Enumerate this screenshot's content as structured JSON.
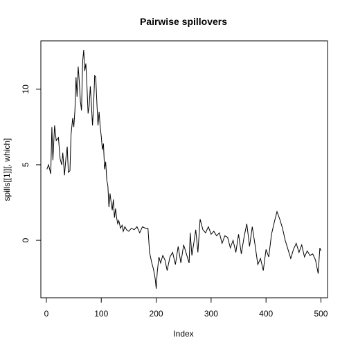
{
  "chart_data": {
    "type": "line",
    "title": "Pairwise spillovers",
    "xlabel": "Index",
    "ylabel": "spills[[1]][, which]",
    "xlim": [
      -10,
      512
    ],
    "ylim": [
      -3.8,
      13.2
    ],
    "x_ticks": [
      0,
      100,
      200,
      300,
      400,
      500
    ],
    "y_ticks": [
      0,
      5,
      10
    ],
    "grid": false,
    "legend": "none",
    "line_color": "#000000",
    "series": [
      {
        "x": [
          1,
          4,
          8,
          10,
          12,
          15,
          18,
          22,
          25,
          28,
          30,
          33,
          36,
          38,
          40,
          43,
          45,
          48,
          50,
          52,
          54,
          56,
          58,
          60,
          62,
          64,
          66,
          68,
          70,
          72,
          74,
          76,
          78,
          80,
          82,
          84,
          86,
          88,
          90,
          92,
          94,
          96,
          98,
          100,
          102,
          104,
          106,
          108,
          110,
          112,
          114,
          116,
          118,
          120,
          122,
          124,
          126,
          128,
          130,
          132,
          135,
          138,
          140,
          143,
          146,
          150,
          155,
          160,
          165,
          170,
          175,
          180,
          185,
          188,
          192,
          195,
          198,
          200,
          202,
          205,
          208,
          212,
          216,
          220,
          225,
          230,
          235,
          240,
          245,
          250,
          255,
          260,
          262,
          265,
          268,
          272,
          276,
          280,
          285,
          290,
          295,
          300,
          305,
          310,
          315,
          320,
          325,
          330,
          335,
          340,
          345,
          350,
          355,
          360,
          365,
          370,
          375,
          380,
          385,
          390,
          395,
          400,
          405,
          410,
          415,
          420,
          425,
          430,
          435,
          440,
          445,
          450,
          455,
          460,
          465,
          470,
          475,
          480,
          485,
          490,
          495,
          498,
          500
        ],
        "y": [
          4.7,
          5.0,
          4.4,
          7.5,
          5.3,
          7.6,
          6.6,
          6.8,
          5.4,
          5.0,
          5.8,
          4.3,
          5.6,
          6.2,
          4.5,
          4.6,
          7.0,
          8.1,
          7.5,
          8.6,
          10.8,
          9.5,
          11.5,
          10.5,
          9.2,
          8.6,
          11.8,
          12.6,
          11.2,
          11.7,
          10.2,
          8.4,
          8.9,
          10.2,
          9.0,
          7.6,
          8.8,
          10.9,
          10.8,
          9.1,
          7.6,
          8.5,
          7.5,
          6.9,
          6.0,
          6.4,
          4.7,
          5.2,
          4.0,
          3.6,
          2.2,
          3.1,
          2.5,
          2.0,
          2.7,
          1.5,
          2.1,
          1.5,
          1.1,
          1.3,
          0.8,
          1.0,
          0.6,
          0.9,
          0.7,
          0.6,
          0.8,
          0.7,
          0.9,
          0.5,
          0.9,
          0.8,
          0.8,
          -0.8,
          -1.5,
          -1.9,
          -2.5,
          -3.2,
          -2.1,
          -1.1,
          -1.5,
          -1.0,
          -1.3,
          -2.0,
          -1.1,
          -0.8,
          -1.6,
          -0.4,
          -1.5,
          -0.3,
          -0.9,
          -1.5,
          0.5,
          -1.0,
          -0.3,
          0.7,
          -0.8,
          1.4,
          0.7,
          0.5,
          0.9,
          0.4,
          0.6,
          0.3,
          0.5,
          -0.2,
          0.3,
          0.2,
          -0.5,
          0.0,
          -0.8,
          0.4,
          -0.9,
          0.2,
          1.1,
          -0.4,
          0.9,
          -0.3,
          -1.6,
          -1.2,
          -2.0,
          -0.6,
          -1.1,
          0.4,
          1.2,
          1.9,
          1.4,
          0.8,
          0.0,
          -0.6,
          -1.2,
          -0.6,
          -0.2,
          -0.8,
          -0.3,
          -1.1,
          -0.7,
          -1.0,
          -0.9,
          -1.3,
          -2.2,
          -0.5,
          -0.7
        ]
      }
    ]
  }
}
